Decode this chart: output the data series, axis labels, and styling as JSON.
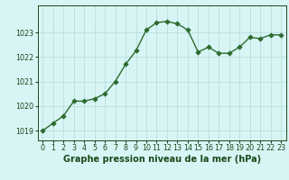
{
  "x": [
    0,
    1,
    2,
    3,
    4,
    5,
    6,
    7,
    8,
    9,
    10,
    11,
    12,
    13,
    14,
    15,
    16,
    17,
    18,
    19,
    20,
    21,
    22,
    23
  ],
  "y": [
    1019.0,
    1019.3,
    1019.6,
    1020.2,
    1020.2,
    1020.3,
    1020.5,
    1021.0,
    1021.7,
    1022.25,
    1023.1,
    1023.4,
    1023.45,
    1023.35,
    1023.1,
    1022.2,
    1022.4,
    1022.15,
    1022.15,
    1022.4,
    1022.8,
    1022.75,
    1022.9,
    1022.9
  ],
  "line_color": "#2d6a2d",
  "marker_color": "#2d6a2d",
  "bg_color": "#d8f5f5",
  "grid_color": "#b8dede",
  "xlabel": "Graphe pression niveau de la mer (hPa)",
  "xlabel_color": "#1a4a1a",
  "tick_color": "#1a4a1a",
  "ylim": [
    1018.6,
    1024.1
  ],
  "yticks": [
    1019,
    1020,
    1021,
    1022,
    1023
  ],
  "xticks": [
    0,
    1,
    2,
    3,
    4,
    5,
    6,
    7,
    8,
    9,
    10,
    11,
    12,
    13,
    14,
    15,
    16,
    17,
    18,
    19,
    20,
    21,
    22,
    23
  ],
  "marker_size": 2.8,
  "line_width": 1.0,
  "font_size_label": 7.0,
  "font_size_tick": 5.8
}
